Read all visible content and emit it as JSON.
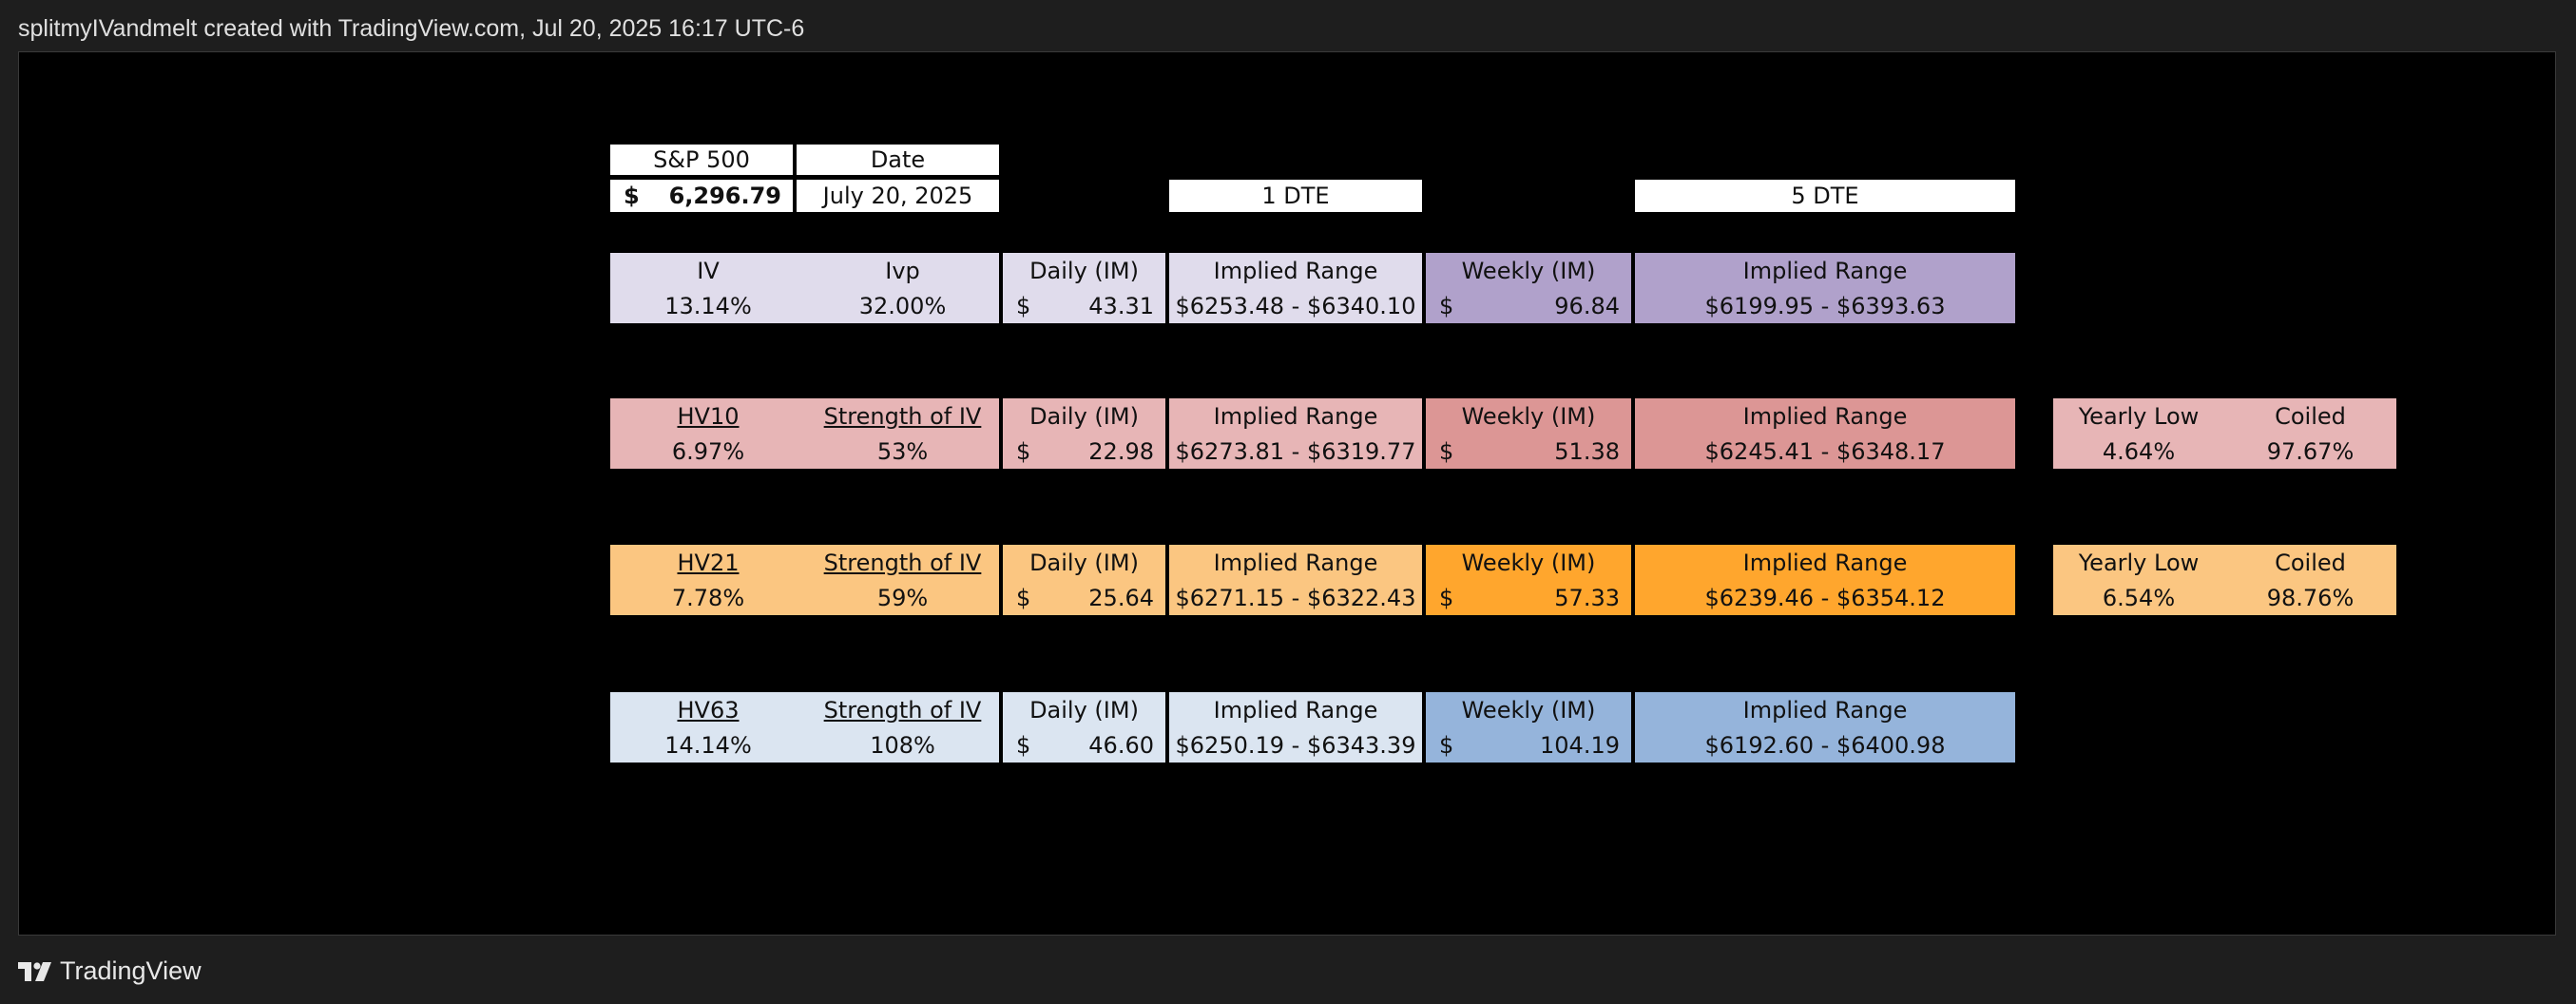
{
  "header": {
    "attribution": "splitmyIVandmelt created with TradingView.com, Jul 20, 2025 16:17 UTC-6"
  },
  "footer": {
    "brand": "TradingView"
  },
  "table": {
    "spx": {
      "label": "S&P 500",
      "currency": "$",
      "value": "6,296.79"
    },
    "date": {
      "label": "Date",
      "value": "July 20, 2025"
    },
    "dte1": "1 DTE",
    "dte5": "5 DTE",
    "iv_row": {
      "h1": "IV",
      "h2": "Ivp",
      "h3": "Daily (IM)",
      "h4": "Implied Range",
      "h5": "Weekly (IM)",
      "h6": "Implied Range",
      "v1": "13.14%",
      "v2": "32.00%",
      "cur": "$",
      "v3": "43.31",
      "v4": "$6253.48 - $6340.10",
      "v5": "96.84",
      "v6": "$6199.95 - $6393.63"
    },
    "hv10_row": {
      "h1": "HV10",
      "h2": "Strength of IV",
      "h3": "Daily (IM)",
      "h4": "Implied Range",
      "h5": "Weekly (IM)",
      "h6": "Implied Range",
      "v1": "6.97%",
      "v2": "53%",
      "cur": "$",
      "v3": "22.98",
      "v4": "$6273.81 - $6319.77",
      "v5": "51.38",
      "v6": "$6245.41 - $6348.17",
      "h7": "Yearly Low",
      "h8": "Coiled",
      "v7": "4.64%",
      "v8": "97.67%"
    },
    "hv21_row": {
      "h1": "HV21",
      "h2": "Strength of IV",
      "h3": "Daily (IM)",
      "h4": "Implied Range",
      "h5": "Weekly (IM)",
      "h6": "Implied Range",
      "v1": "7.78%",
      "v2": "59%",
      "cur": "$",
      "v3": "25.64",
      "v4": "$6271.15 - $6322.43",
      "v5": "57.33",
      "v6": "$6239.46 - $6354.12",
      "h7": "Yearly Low",
      "h8": "Coiled",
      "v7": "6.54%",
      "v8": "98.76%"
    },
    "hv63_row": {
      "h1": "HV63",
      "h2": "Strength of IV",
      "h3": "Daily (IM)",
      "h4": "Implied Range",
      "h5": "Weekly (IM)",
      "h6": "Implied Range",
      "v1": "14.14%",
      "v2": "108%",
      "cur": "$",
      "v3": "46.60",
      "v4": "$6250.19 - $6343.39",
      "v5": "104.19",
      "v6": "$6192.60 - $6400.98"
    }
  },
  "colors": {
    "background": "#000000",
    "frame": "#1e1e1e",
    "iv_light": "#e0dcec",
    "iv_dark": "#b0a1cb",
    "hv10_light": "#e7b5b6",
    "hv10_dark": "#dc9695",
    "hv21_light": "#fbc681",
    "hv21_dark": "#ffa62d",
    "hv63_light": "#dbe5f1",
    "hv63_dark": "#95b4db"
  }
}
